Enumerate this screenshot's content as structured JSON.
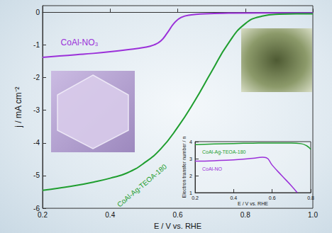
{
  "chart_data": [
    {
      "type": "line",
      "x_label": "E / V vs. RHE",
      "y_label": "j / mA cm⁻²",
      "xlim": [
        0.2,
        1
      ],
      "xticks": [
        0.2,
        0.4,
        0.6,
        0.8,
        {
          "value": 1,
          "label": "1.0"
        }
      ],
      "ylim": [
        -6,
        0.2
      ],
      "yticks": [
        -6,
        -5,
        -4,
        -3,
        -2,
        -1,
        0
      ],
      "grid": false,
      "series": [
        {
          "name": "CoAl-NO₃",
          "color": "#9b30d9",
          "x": [
            0.2,
            0.25,
            0.3,
            0.35,
            0.4,
            0.45,
            0.5,
            0.53,
            0.55,
            0.57,
            0.59,
            0.61,
            0.64,
            0.68,
            0.75,
            0.85,
            1.0
          ],
          "values": [
            -1.38,
            -1.34,
            -1.3,
            -1.26,
            -1.21,
            -1.15,
            -1.08,
            -1.0,
            -0.88,
            -0.62,
            -0.33,
            -0.16,
            -0.08,
            -0.05,
            -0.03,
            -0.02,
            -0.02
          ]
        },
        {
          "name": "CoAl-Ag-TEOA-180",
          "color": "#1f9e2f",
          "x": [
            0.2,
            0.25,
            0.3,
            0.35,
            0.4,
            0.45,
            0.5,
            0.55,
            0.6,
            0.65,
            0.7,
            0.75,
            0.8,
            0.85,
            0.9,
            0.95,
            1.0
          ],
          "values": [
            -5.45,
            -5.38,
            -5.3,
            -5.2,
            -5.08,
            -4.92,
            -4.62,
            -4.18,
            -3.52,
            -2.72,
            -1.82,
            -0.95,
            -0.35,
            -0.12,
            -0.06,
            -0.05,
            -0.05
          ]
        }
      ]
    },
    {
      "type": "line",
      "x_label": "E / V vs. RHE",
      "y_label": "Electron transfer number / n",
      "xlim": [
        0.2,
        0.8
      ],
      "xticks": [
        0.2,
        0.4,
        0.6,
        0.8
      ],
      "ylim": [
        1,
        4
      ],
      "yticks": [
        1,
        2,
        3,
        4
      ],
      "grid": false,
      "series": [
        {
          "name": "CoAl-Ag-TEOA-180",
          "color": "#1f9e2f",
          "x": [
            0.2,
            0.3,
            0.4,
            0.5,
            0.6,
            0.7,
            0.75,
            0.78,
            0.8
          ],
          "values": [
            3.82,
            3.86,
            3.89,
            3.91,
            3.92,
            3.92,
            3.88,
            3.75,
            3.55
          ]
        },
        {
          "name": "CoAl-NO",
          "color": "#9b30d9",
          "x": [
            0.2,
            0.3,
            0.4,
            0.5,
            0.55,
            0.57,
            0.6,
            0.65,
            0.7,
            0.73
          ],
          "values": [
            2.85,
            2.88,
            2.93,
            3.02,
            3.08,
            3.05,
            2.62,
            2.0,
            1.4,
            1.0
          ]
        }
      ]
    }
  ]
}
